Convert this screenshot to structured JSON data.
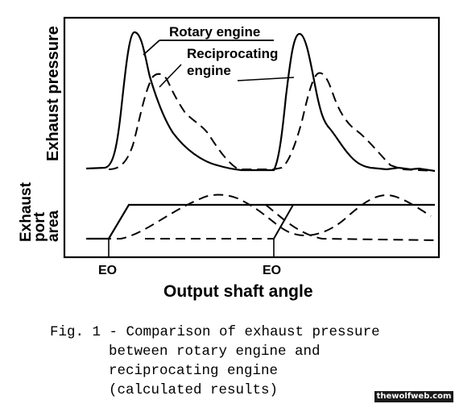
{
  "labels": {
    "pressure_axis": "Exhaust pressure",
    "port_area_axis": [
      "Exhaust",
      "port",
      "area"
    ],
    "rotary": "Rotary engine",
    "reciprocating": [
      "Reciprocating",
      "engine"
    ],
    "eo_marks": [
      "EO",
      "EO"
    ],
    "x_axis": "Output shaft angle"
  },
  "caption": [
    "Fig. 1 - Comparison of exhaust pressure",
    "between rotary engine and",
    "reciprocating engine",
    "(calculated results)"
  ],
  "watermark": "thewolfweb.com"
}
